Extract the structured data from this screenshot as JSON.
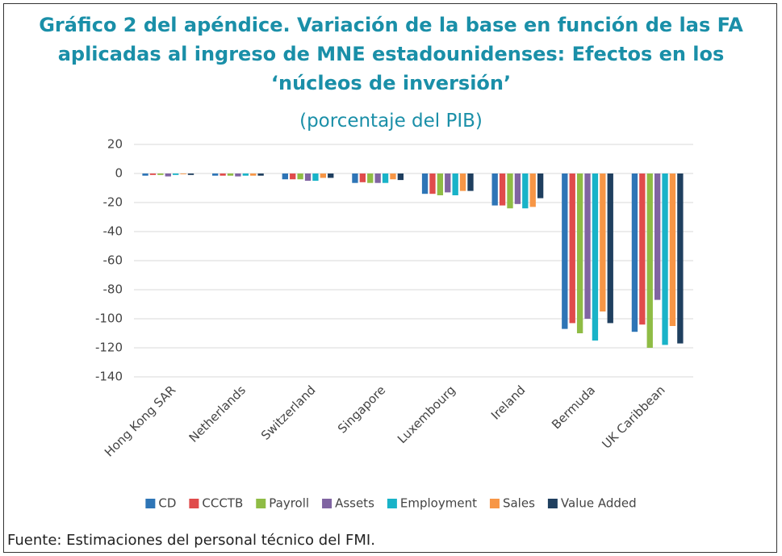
{
  "chart_data": {
    "type": "bar",
    "title": "Gráfico 2 del apéndice. Variación de la base en función de las FA aplicadas al ingreso de MNE estadounidenses: Efectos en los ‘núcleos de inversión’",
    "subtitle": "(porcentaje del PIB)",
    "source": "Fuente: Estimaciones del personal técnico del FMI.",
    "categories": [
      "Hong Kong SAR",
      "Netherlands",
      "Switzerland",
      "Singapore",
      "Luxembourg",
      "Ireland",
      "Bermuda",
      "UK Caribbean"
    ],
    "series": [
      {
        "name": "CD",
        "color": "#2e75b6",
        "values": [
          -1.5,
          -1.5,
          -4,
          -6.5,
          -14,
          -22,
          -107,
          -109
        ]
      },
      {
        "name": "CCCTB",
        "color": "#e04b4b",
        "values": [
          -1,
          -1.5,
          -4,
          -6,
          -14,
          -22,
          -103,
          -104
        ]
      },
      {
        "name": "Payroll",
        "color": "#8fbc45",
        "values": [
          -1,
          -1.5,
          -4,
          -6.5,
          -15,
          -24,
          -110,
          -120
        ]
      },
      {
        "name": "Assets",
        "color": "#8064a2",
        "values": [
          -2,
          -2,
          -5,
          -6.5,
          -13,
          -21,
          -100,
          -87
        ]
      },
      {
        "name": "Employment",
        "color": "#19b3c8",
        "values": [
          -1,
          -1.5,
          -5,
          -6.5,
          -15,
          -24,
          -115,
          -118
        ]
      },
      {
        "name": "Sales",
        "color": "#f79646",
        "values": [
          -0.5,
          -1.5,
          -3,
          -4,
          -12,
          -23,
          -95,
          -105
        ]
      },
      {
        "name": "Value Added",
        "color": "#1f3f5f",
        "values": [
          -1,
          -1.5,
          -3,
          -4.5,
          -12,
          -17,
          -103,
          -117
        ]
      }
    ],
    "ylim": [
      -140,
      20
    ],
    "yticks": [
      20,
      0,
      -20,
      -40,
      -60,
      -80,
      -100,
      -120,
      -140
    ],
    "grid": true
  }
}
